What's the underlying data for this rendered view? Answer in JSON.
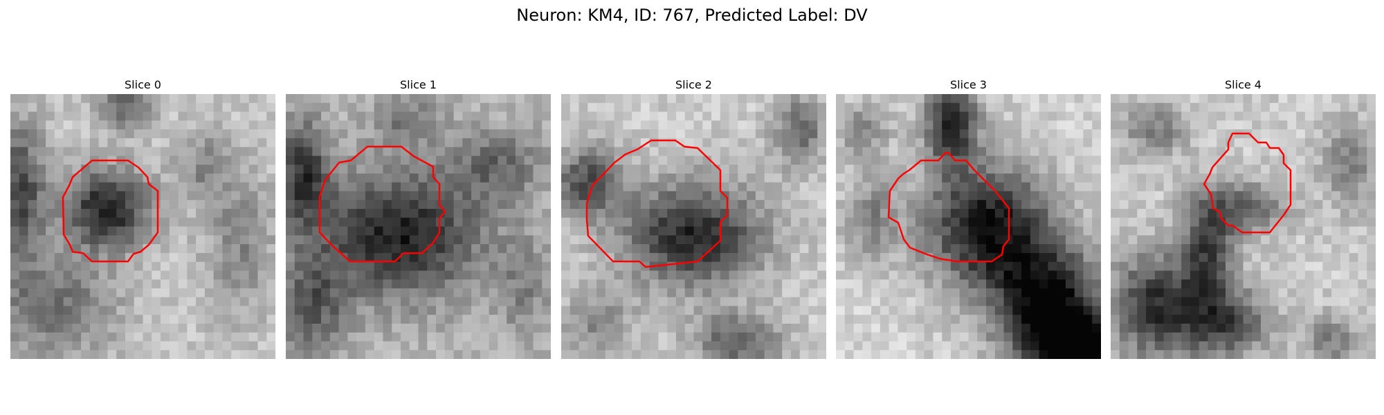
{
  "figure": {
    "title": "Neuron: KM4, ID: 767, Predicted Label: DV"
  },
  "panels": [
    {
      "title": "Slice 0"
    },
    {
      "title": "Slice 1"
    },
    {
      "title": "Slice 2"
    },
    {
      "title": "Slice 3"
    },
    {
      "title": "Slice 4"
    }
  ],
  "colors": {
    "contour": "#ff0000",
    "background": "#ffffff"
  }
}
